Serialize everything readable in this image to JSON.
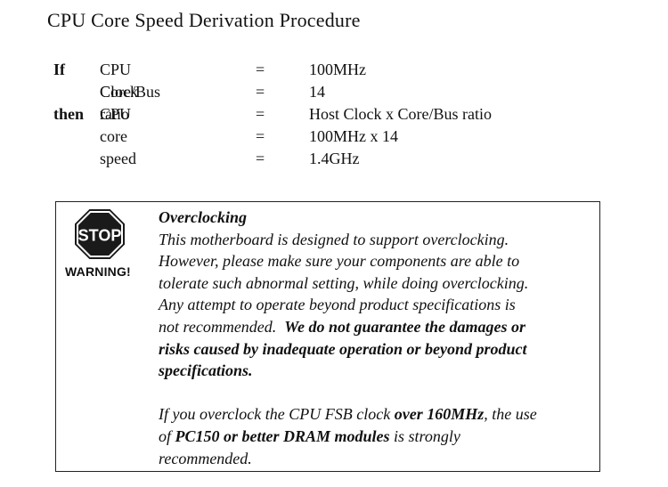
{
  "title": "CPU Core Speed Derivation Procedure",
  "formula": {
    "rows": [
      {
        "keyword": "If",
        "label": "CPU Clock",
        "eq": "=",
        "value": "100MHz"
      },
      {
        "keyword": "",
        "label": "Core/Bus ratio",
        "eq": "=",
        "value": "14"
      },
      {
        "keyword": "then",
        "label": "CPU core speed",
        "eq": "=",
        "value": "Host Clock x Core/Bus ratio"
      },
      {
        "keyword": "",
        "label": "",
        "eq": "=",
        "value": "100MHz x 14"
      },
      {
        "keyword": "",
        "label": "",
        "eq": "=",
        "value": "1.4GHz"
      }
    ]
  },
  "warning": {
    "stop_text": "STOP",
    "label": "WARNING!",
    "icon": "stop-sign-icon",
    "stop_color": "#1a1a1a",
    "heading": "Overclocking",
    "p1_lines": [
      "This motherboard is designed to support overclocking.",
      "However, please make sure your components are able to",
      "tolerate such abnormal setting, while doing overclocking.",
      "Any attempt to operate beyond product specifications is"
    ],
    "p1_last_plain": "not recommended.  ",
    "p1_last_bold": "We do not guarantee the damages or",
    "p1_bold_lines": [
      "risks caused by inadequate operation or beyond product",
      "specifications."
    ],
    "p2": {
      "l1_a": "If you overclock the CPU FSB clock ",
      "l1_b": "over 160MHz",
      "l1_c": ", the use",
      "l2_a": "of ",
      "l2_b": "PC150 or better DRAM modules",
      "l2_c": " is strongly",
      "l3": "recommended."
    }
  }
}
